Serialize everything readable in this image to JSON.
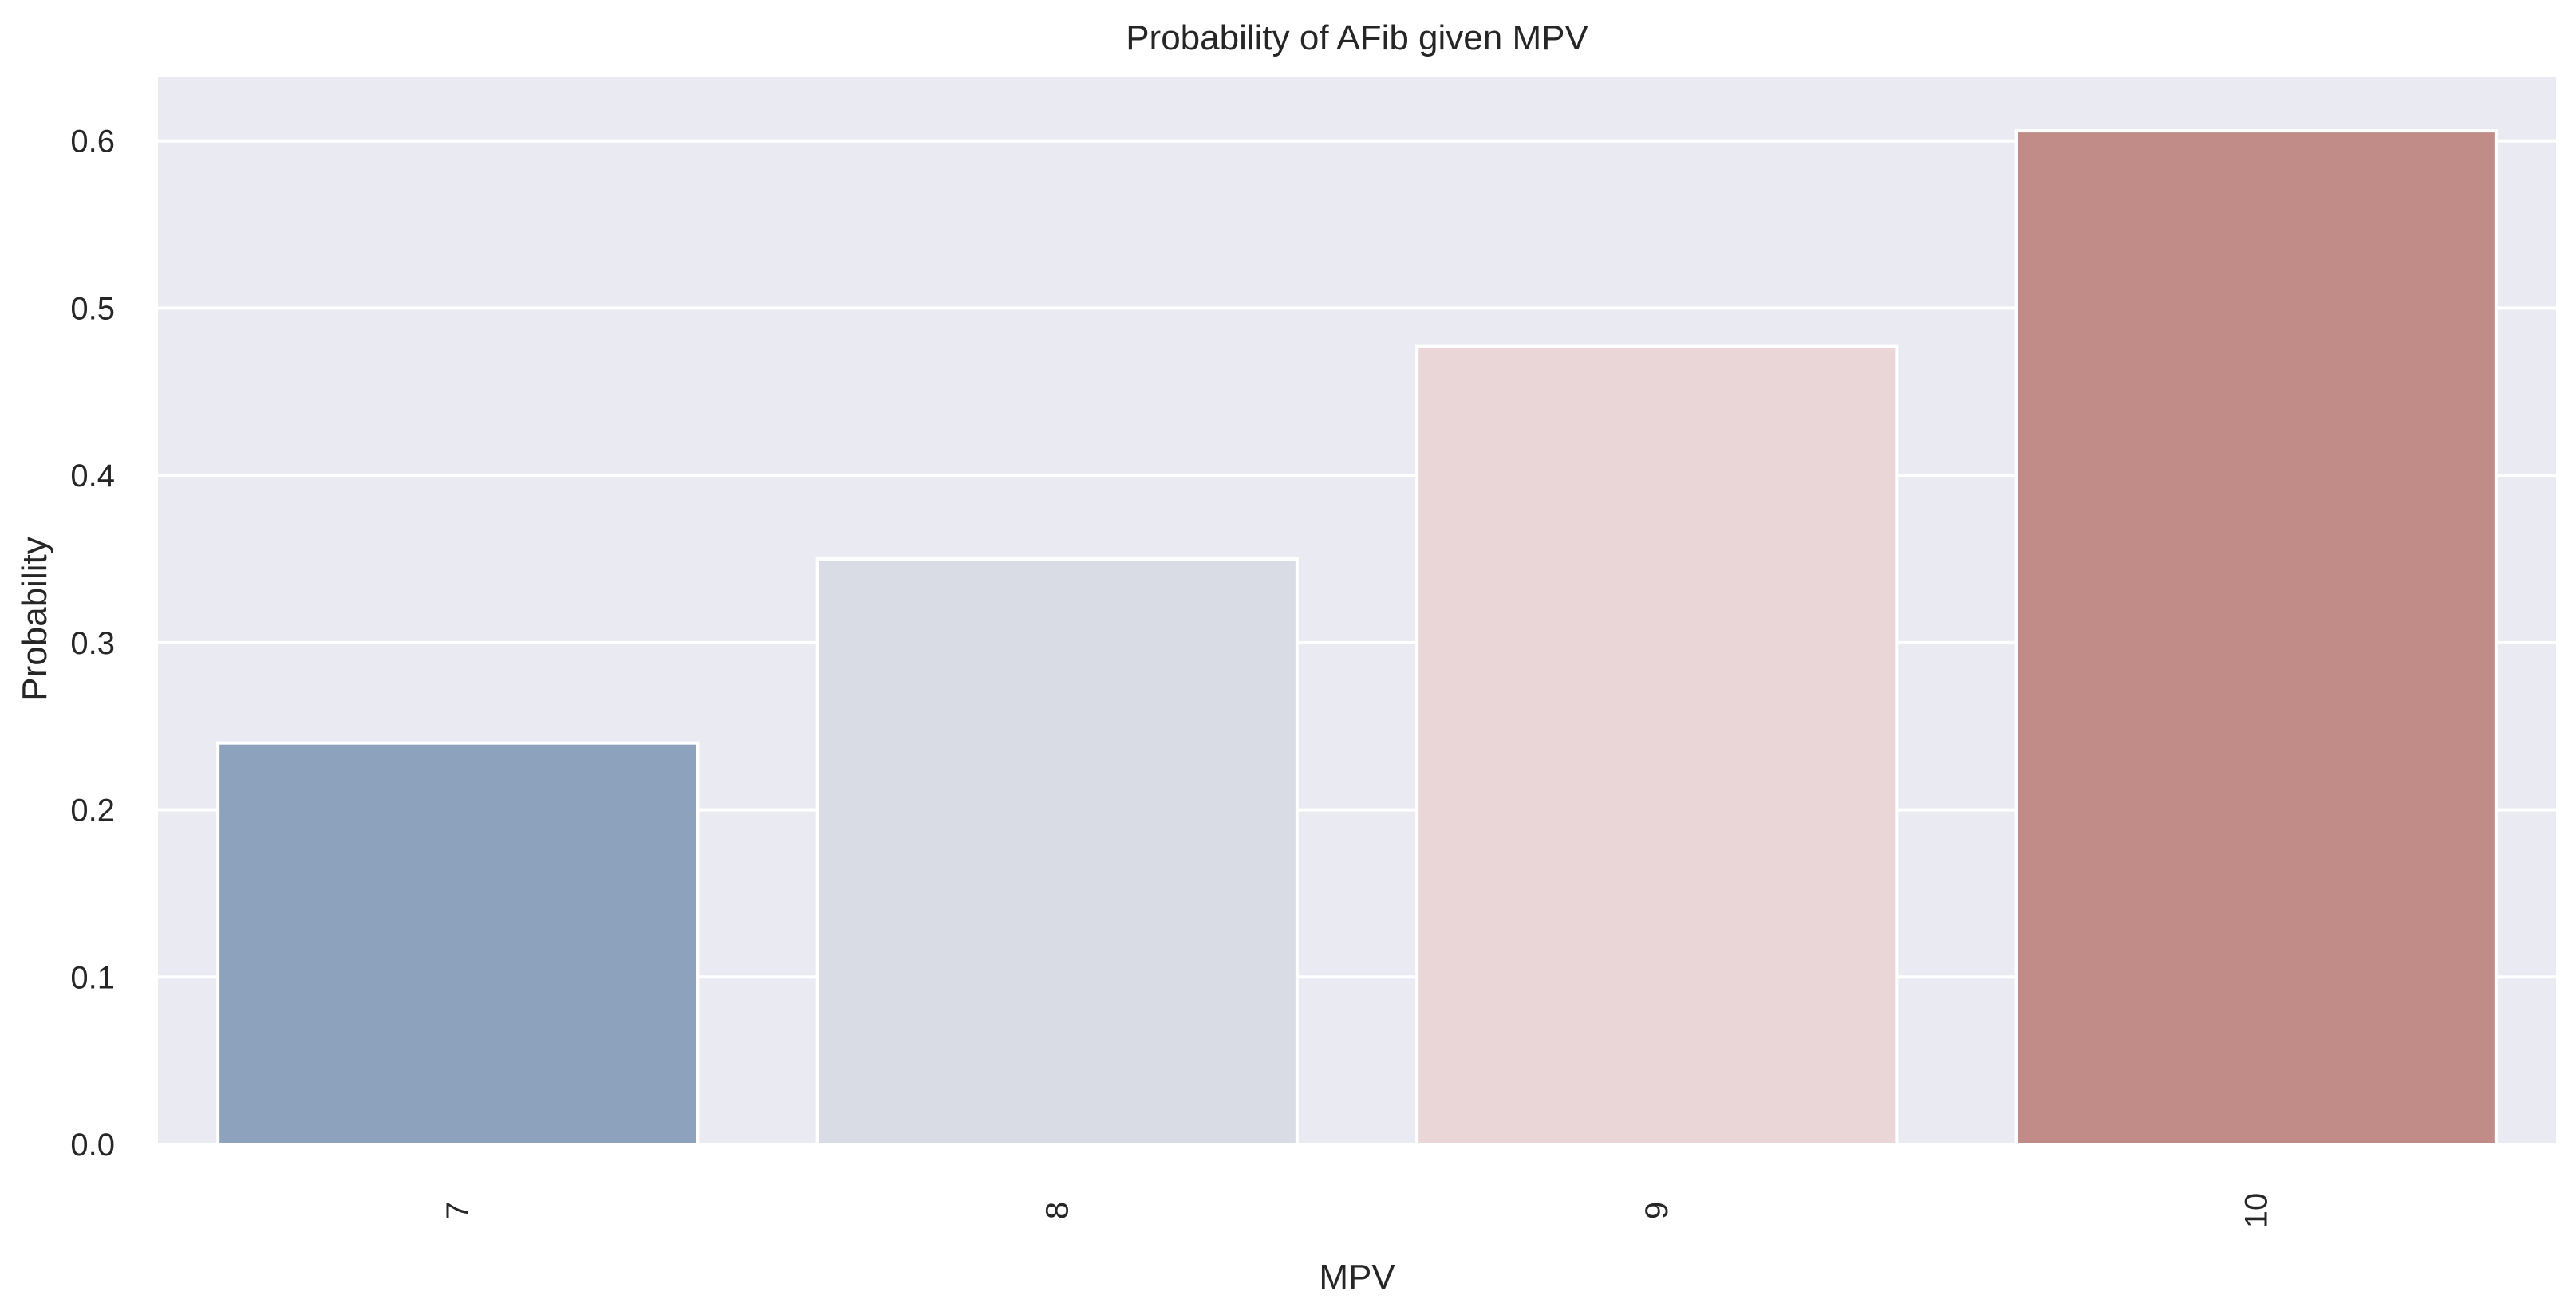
{
  "chart_data": {
    "type": "bar",
    "title": "Probability of AFib given MPV",
    "xlabel": "MPV",
    "ylabel": "Probability",
    "categories": [
      "7",
      "8",
      "9",
      "10"
    ],
    "values": [
      0.24,
      0.35,
      0.477,
      0.606
    ],
    "colors": [
      "#8da2bd",
      "#d9dce4",
      "#ead6d6",
      "#c18c88"
    ],
    "ylim": [
      0,
      0.638
    ],
    "yticks": [
      0.0,
      0.1,
      0.2,
      0.3,
      0.4,
      0.5,
      0.6
    ],
    "ytick_labels": [
      "0.0",
      "0.1",
      "0.2",
      "0.3",
      "0.4",
      "0.5",
      "0.6"
    ],
    "grid": true,
    "plot_background": "#eaeaf2",
    "xtick_rotation": "vertical"
  }
}
